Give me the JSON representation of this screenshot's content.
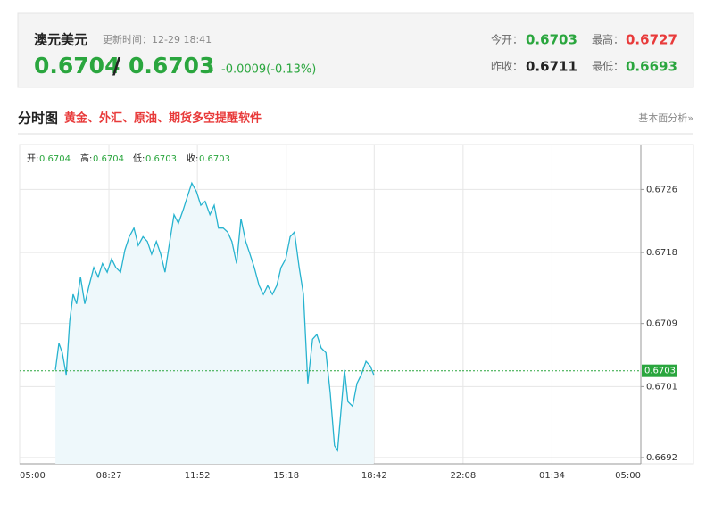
{
  "header": {
    "title": "澳元美元",
    "update_time": "更新时间：12-29 18:41",
    "bid": 0.6704,
    "separator": "/",
    "ask": 0.6703,
    "arrow": "↓",
    "change": "-0.0009(-0.13%)",
    "stats": [
      {
        "label": "今开：",
        "value": 0.6703
      },
      {
        "label": "最高：",
        "value": 0.6727
      },
      {
        "label": "昨收：",
        "value": 0.6711
      },
      {
        "label": "最低：",
        "value": 0.6693
      }
    ]
  },
  "section": {
    "title": "分时图",
    "promo": "黄金、外汇、原油、期货多空提醒软件",
    "link": "基本面分析»"
  },
  "chart_data": {
    "type": "line",
    "legend_items": [
      {
        "label": "开:",
        "value": 0.6704
      },
      {
        "label": "高:",
        "value": 0.6704
      },
      {
        "label": "低:",
        "value": 0.6703
      },
      {
        "label": "收:",
        "value": 0.6703
      }
    ],
    "x": [
      83,
      91,
      99,
      108,
      116,
      124,
      132,
      141,
      151,
      161,
      172,
      182,
      192,
      203,
      213,
      223,
      234,
      244,
      254,
      265,
      275,
      286,
      296,
      306,
      317,
      327,
      337,
      348,
      358,
      368,
      379,
      389,
      399,
      410,
      420,
      430,
      441,
      451,
      461,
      472,
      482,
      492,
      503,
      513,
      524,
      534,
      544,
      555,
      565,
      575,
      586,
      596,
      606,
      617,
      627,
      637,
      648,
      658,
      668,
      679,
      689,
      699,
      710,
      720,
      730,
      737,
      745,
      753,
      761,
      772,
      782,
      792,
      803,
      813,
      821
    ],
    "series": [
      {
        "color": "#27b3cf",
        "values": [
          0.67031,
          0.67065,
          0.67053,
          0.67025,
          0.67093,
          0.67127,
          0.67115,
          0.67149,
          0.67115,
          0.67138,
          0.67161,
          0.67149,
          0.67166,
          0.67155,
          0.67172,
          0.67161,
          0.67155,
          0.67183,
          0.672,
          0.67211,
          0.67189,
          0.672,
          0.67194,
          0.67178,
          0.67194,
          0.67178,
          0.67155,
          0.67194,
          0.67228,
          0.67217,
          0.67234,
          0.67251,
          0.67268,
          0.67257,
          0.6724,
          0.67245,
          0.67228,
          0.6724,
          0.67211,
          0.67211,
          0.67206,
          0.67194,
          0.67166,
          0.67223,
          0.67194,
          0.67178,
          0.67161,
          0.67138,
          0.67127,
          0.67138,
          0.67127,
          0.67138,
          0.67161,
          0.67172,
          0.672,
          0.67206,
          0.67161,
          0.67127,
          0.67014,
          0.6707,
          0.67076,
          0.67059,
          0.67053,
          0.67002,
          0.66935,
          0.66929,
          0.6698,
          0.67031,
          0.66991,
          0.66985,
          0.67014,
          0.67025,
          0.67042,
          0.67036,
          0.67025
        ]
      }
    ],
    "last_price": 0.6703,
    "last_price_color": "#2aa63e",
    "area_fill": "#eef8fb",
    "xlim": [
      0,
      1440
    ],
    "xticks": [
      {
        "value": 0,
        "label": "05:00"
      },
      {
        "value": 207,
        "label": "08:27"
      },
      {
        "value": 412,
        "label": "11:52"
      },
      {
        "value": 618,
        "label": "15:18"
      },
      {
        "value": 822,
        "label": "18:42"
      },
      {
        "value": 1028,
        "label": "22:08"
      },
      {
        "value": 1234,
        "label": "01:34"
      },
      {
        "value": 1440,
        "label": "05:00"
      }
    ],
    "ylim": [
      0.66912,
      0.67317
    ],
    "yticks": [
      0.6692,
      0.6701,
      0.6709,
      0.6718,
      0.6726
    ],
    "grid": true
  }
}
